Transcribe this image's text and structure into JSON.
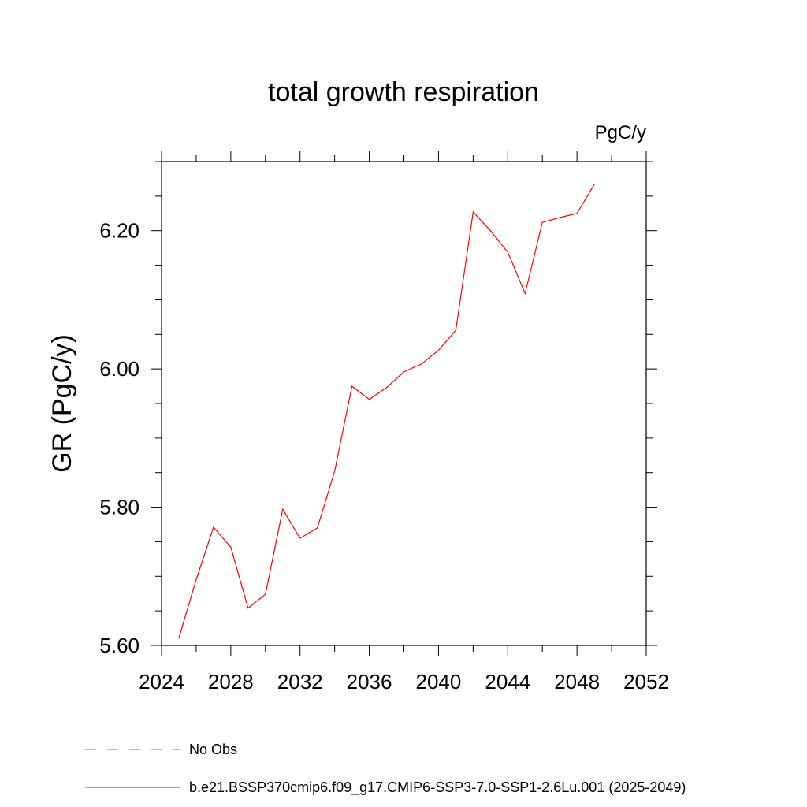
{
  "chart_data": {
    "type": "line",
    "title": "total growth respiration",
    "units_label": "PgC/y",
    "ylabel": "GR  (PgC/y)",
    "xlabel": "",
    "xlim": [
      2024,
      2052
    ],
    "ylim": [
      5.6,
      6.3
    ],
    "x_ticks": [
      "2024",
      "2028",
      "2032",
      "2036",
      "2040",
      "2044",
      "2048",
      "2052"
    ],
    "y_ticks": [
      "5.60",
      "5.80",
      "6.00",
      "6.20"
    ],
    "grid": false,
    "legend_position": "bottom-left",
    "series": [
      {
        "name": "b.e21.BSSP370cmip6.f09_g17.CMIP6-SSP3-7.0-SSP1-2.6Lu.001 (2025-2049)",
        "color": "#ff0000",
        "style": "solid",
        "x": [
          2025,
          2026,
          2027,
          2028,
          2029,
          2030,
          2031,
          2032,
          2033,
          2034,
          2035,
          2036,
          2037,
          2038,
          2039,
          2040,
          2041,
          2042,
          2043,
          2044,
          2045,
          2046,
          2047,
          2048,
          2049
        ],
        "values": [
          5.611,
          5.695,
          5.771,
          5.742,
          5.654,
          5.674,
          5.797,
          5.755,
          5.77,
          5.852,
          5.975,
          5.956,
          5.973,
          5.996,
          6.007,
          6.027,
          6.056,
          6.227,
          6.2,
          6.169,
          6.109,
          6.212,
          6.219,
          6.225,
          6.267
        ]
      }
    ],
    "legend": [
      {
        "label": "No Obs",
        "color": "#7070c0",
        "style": "dashed"
      },
      {
        "label": "b.e21.BSSP370cmip6.f09_g17.CMIP6-SSP3-7.0-SSP1-2.6Lu.001 (2025-2049)",
        "color": "#ff0000",
        "style": "solid"
      }
    ]
  }
}
